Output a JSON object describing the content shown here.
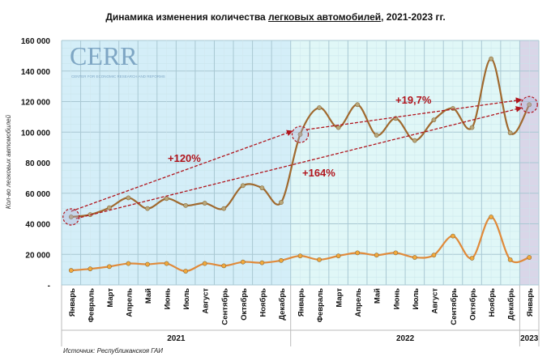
{
  "title_prefix": "Динамика изменения количества ",
  "title_underlined": "легковых автомобилей",
  "title_suffix": ", 2021-2023 гг.",
  "logo": {
    "text": "CERR",
    "subtitle": "CENTER FOR ECONOMIC RESEARCH AND REFORMS"
  },
  "source": "Источник: Республиканскоя ГАИ",
  "chart_data": {
    "type": "line",
    "title": "Динамика изменения количества легковых автомобилей, 2021-2023 гг.",
    "ylabel": "Кол-во легковых автомобилей",
    "ylim": [
      0,
      160000
    ],
    "yticks": [
      "-",
      "20 000",
      "40 000",
      "60 000",
      "80 000",
      "100 000",
      "120 000",
      "140 000",
      "160 000"
    ],
    "grid": true,
    "categories": [
      "Январь",
      "Февраль",
      "Март",
      "Апрель",
      "Май",
      "Июнь",
      "Июль",
      "Август",
      "Сентябрь",
      "Октябрь",
      "Ноябрь",
      "Декабрь",
      "Январь",
      "Февраль",
      "Март",
      "Апрель",
      "Май",
      "Июнь",
      "Июль",
      "Август",
      "Сентябрь",
      "Октябрь",
      "Ноябрь",
      "Декабрь",
      "Январь"
    ],
    "years": [
      {
        "label": "2021",
        "months": 12,
        "color": "#d4eef8"
      },
      {
        "label": "2022",
        "months": 12,
        "color": "#e0f7f7"
      },
      {
        "label": "2023",
        "months": 1,
        "color": "#d9d6e8"
      }
    ],
    "series": [
      {
        "color": "#a0692e",
        "marker": "#b8a77a",
        "values": [
          44500,
          46000,
          50500,
          57000,
          50000,
          56500,
          52000,
          53500,
          50000,
          65000,
          63500,
          54000,
          98500,
          116000,
          103000,
          118000,
          98000,
          109000,
          94500,
          108000,
          115500,
          103000,
          148000,
          99500,
          118000
        ]
      },
      {
        "color": "#e08a3a",
        "marker": "#f2a93b",
        "values": [
          9500,
          10500,
          12000,
          14000,
          13500,
          14000,
          9000,
          14000,
          12500,
          15000,
          14500,
          16000,
          19000,
          16500,
          19000,
          21000,
          19500,
          21000,
          18000,
          19500,
          32000,
          17500,
          44500,
          16500,
          18000
        ]
      }
    ],
    "annotations": [
      {
        "text": "+120%",
        "from": 0,
        "to": 12
      },
      {
        "text": "+164%",
        "from": 0,
        "to": 24
      },
      {
        "text": "+19,7%",
        "from": 12,
        "to": 24
      }
    ]
  }
}
